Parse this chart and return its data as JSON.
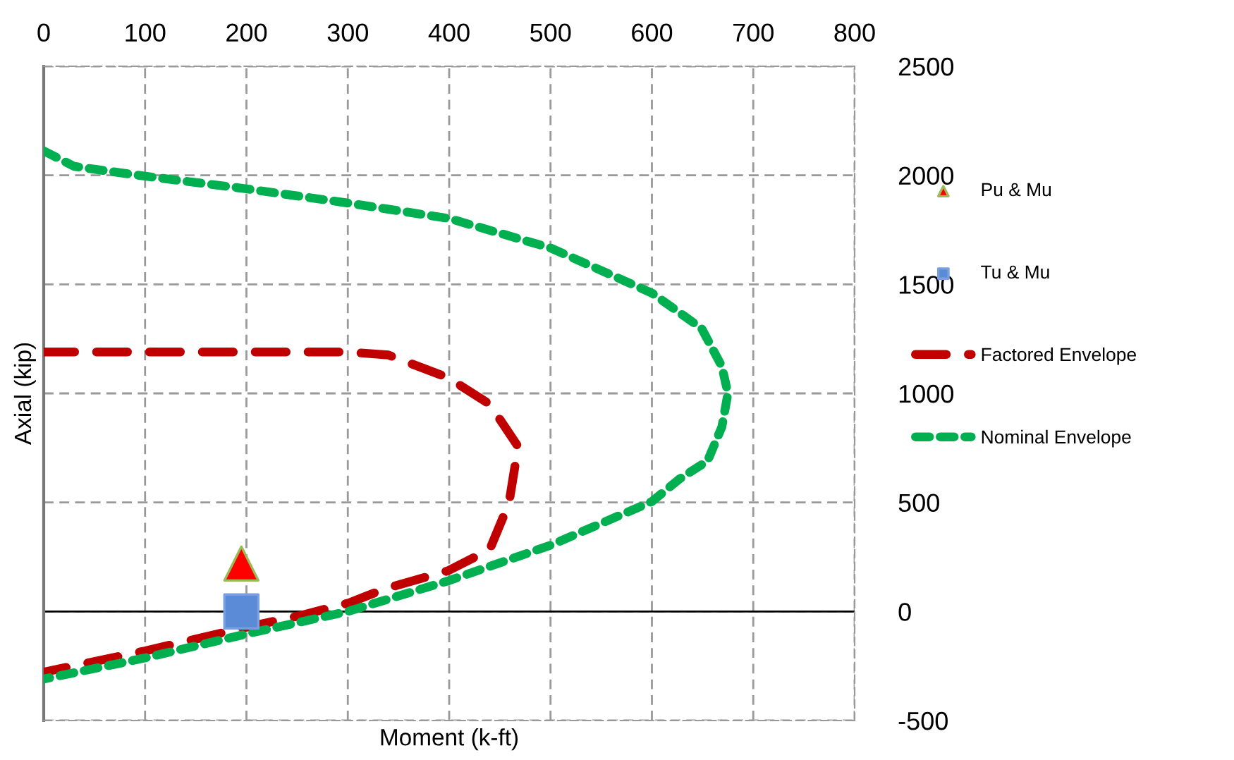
{
  "chart_data": {
    "type": "line",
    "xlabel": "Moment (k-ft)",
    "ylabel": "Axial (kip)",
    "xlim": [
      0,
      800
    ],
    "xticks": [
      0,
      100,
      200,
      300,
      400,
      500,
      600,
      700,
      800
    ],
    "ylim": [
      -500,
      2500
    ],
    "yticks": [
      -500,
      0,
      500,
      1000,
      1500,
      2000,
      2500
    ],
    "grid": true,
    "legend": "right",
    "series": [
      {
        "name": "Pu & Mu",
        "type": "scatter",
        "marker": "triangle",
        "color": "#ff0000",
        "x": [
          195
        ],
        "values": [
          220
        ]
      },
      {
        "name": "Tu & Mu",
        "type": "scatter",
        "marker": "square",
        "color": "#5b8bd6",
        "x": [
          195
        ],
        "values": [
          0
        ]
      },
      {
        "name": "Factored Envelope",
        "line_style": "dashed",
        "color": "#c00000",
        "x": [
          0,
          100,
          200,
          300,
          340,
          399,
          440,
          468,
          459,
          440,
          399,
          336,
          301,
          253,
          201,
          100,
          0
        ],
        "values": [
          1190,
          1190,
          1190,
          1190,
          1176,
          1072,
          950,
          756,
          497,
          284,
          187,
          103,
          39,
          -19,
          -71,
          -181,
          -278
        ]
      },
      {
        "name": "Nominal Envelope",
        "line_style": "dotted",
        "color": "#00b050",
        "x": [
          0,
          30,
          100,
          200,
          300,
          400,
          500,
          600,
          649,
          669,
          675,
          669,
          655,
          627,
          600,
          500,
          400,
          300,
          200,
          100,
          0
        ],
        "values": [
          2112,
          2041,
          1996,
          1938,
          1873,
          1802,
          1667,
          1460,
          1298,
          1124,
          1000,
          846,
          691,
          607,
          504,
          304,
          142,
          0,
          -103,
          -213,
          -310
        ]
      }
    ]
  }
}
